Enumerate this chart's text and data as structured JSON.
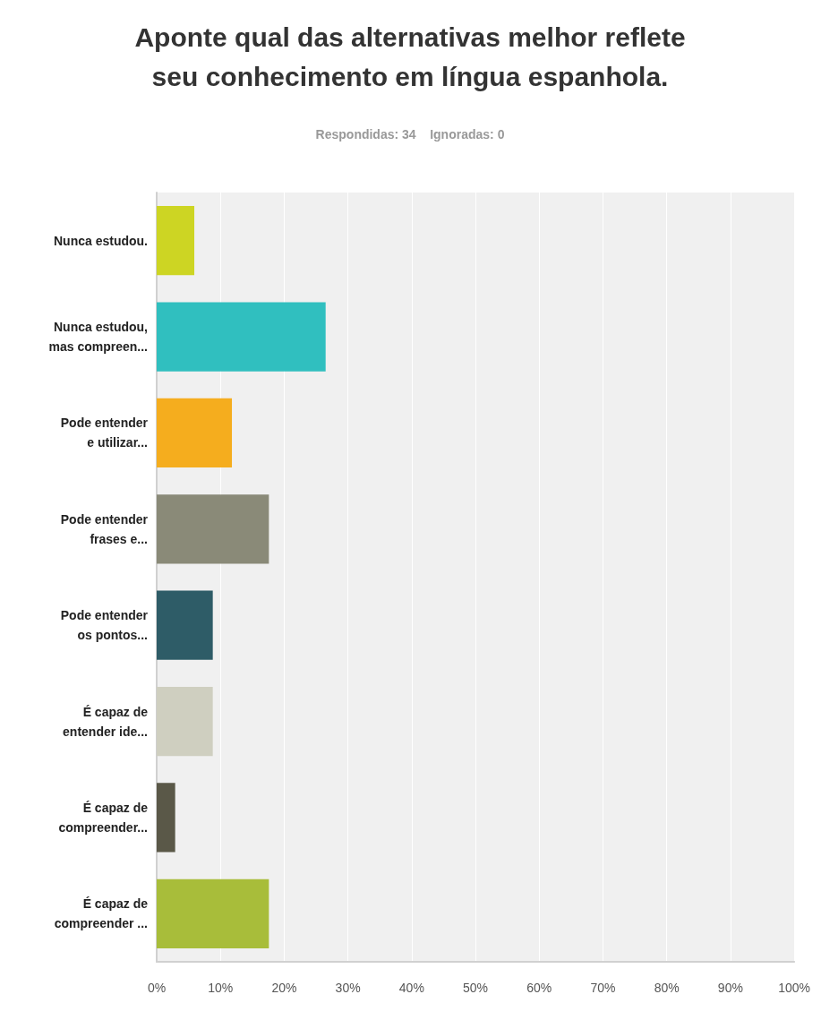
{
  "chart_data": {
    "type": "bar",
    "orientation": "horizontal",
    "title": "Aponte qual das alternativas melhor reflete\nseu conhecimento em língua espanhola.",
    "subtitle": "Respondidas: 34    Ignoradas: 0",
    "categories": [
      "Nunca estudou.",
      "Nunca estudou,\nmas compreen...",
      "Pode entender\ne utilizar...",
      "Pode entender\nfrases e...",
      "Pode entender\nos pontos...",
      "É capaz de\nentender ide...",
      "É capaz de\ncompreender...",
      "É capaz de\ncompreender ..."
    ],
    "values": [
      5.9,
      26.5,
      11.8,
      17.6,
      8.8,
      8.8,
      2.9,
      17.6
    ],
    "colors": [
      "#cdd523",
      "#30bfbf",
      "#f5ad1e",
      "#8a8a78",
      "#2e5c67",
      "#cfcfc0",
      "#5a5848",
      "#a8bd3a"
    ],
    "xlim": [
      0,
      100
    ],
    "xticks": [
      {
        "value": 0,
        "label": "0%"
      },
      {
        "value": 10,
        "label": "10%"
      },
      {
        "value": 20,
        "label": "20%"
      },
      {
        "value": 30,
        "label": "30%"
      },
      {
        "value": 40,
        "label": "40%"
      },
      {
        "value": 50,
        "label": "50%"
      },
      {
        "value": 60,
        "label": "60%"
      },
      {
        "value": 70,
        "label": "70%"
      },
      {
        "value": 80,
        "label": "80%"
      },
      {
        "value": 90,
        "label": "90%"
      },
      {
        "value": 100,
        "label": "100%"
      }
    ],
    "grid": "x"
  }
}
